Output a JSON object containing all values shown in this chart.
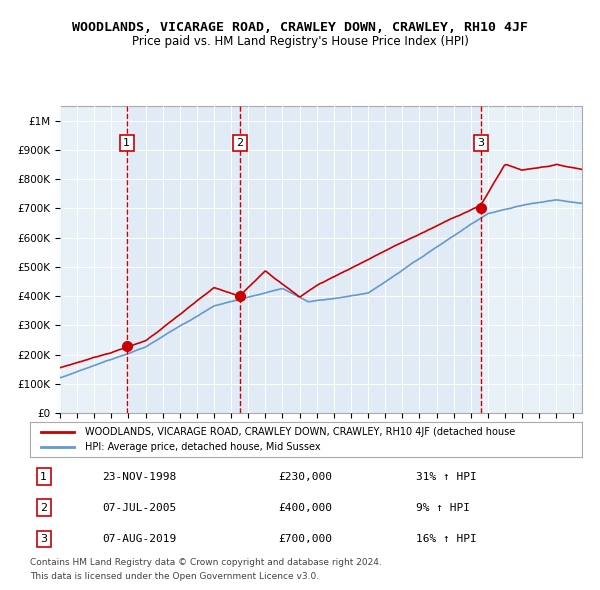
{
  "title": "WOODLANDS, VICARAGE ROAD, CRAWLEY DOWN, CRAWLEY, RH10 4JF",
  "subtitle": "Price paid vs. HM Land Registry's House Price Index (HPI)",
  "legend_property": "WOODLANDS, VICARAGE ROAD, CRAWLEY DOWN, CRAWLEY, RH10 4JF (detached house",
  "legend_hpi": "HPI: Average price, detached house, Mid Sussex",
  "footer1": "Contains HM Land Registry data © Crown copyright and database right 2024.",
  "footer2": "This data is licensed under the Open Government Licence v3.0.",
  "sales": [
    {
      "num": 1,
      "date": "23-NOV-1998",
      "price": 230000,
      "hpi_rel": "31% ↑ HPI",
      "year": 1998.9
    },
    {
      "num": 2,
      "date": "07-JUL-2005",
      "price": 400000,
      "hpi_rel": "9% ↑ HPI",
      "year": 2005.5
    },
    {
      "num": 3,
      "date": "07-AUG-2019",
      "price": 700000,
      "hpi_rel": "16% ↑ HPI",
      "year": 2019.6
    }
  ],
  "property_color": "#cc0000",
  "hpi_color": "#6699cc",
  "background_color": "#ffffff",
  "plot_bg_color": "#e8f0f8",
  "grid_color": "#ffffff",
  "sale_vline_color": "#cc0000",
  "highlight_bg": "#dce8f5",
  "ylim": [
    0,
    1050000
  ],
  "xlim_start": 1995,
  "xlim_end": 2025.5
}
